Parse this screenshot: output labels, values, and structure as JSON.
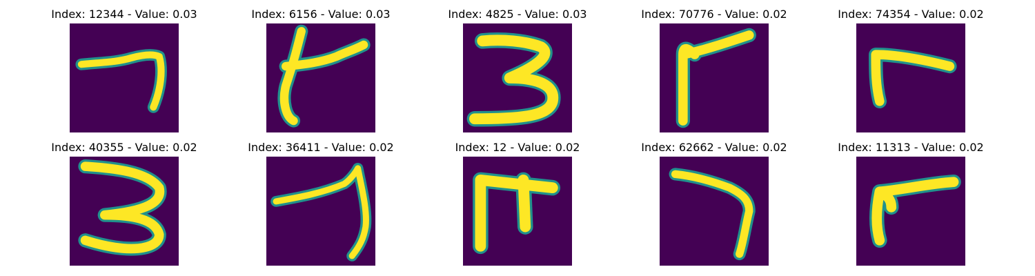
{
  "figure": {
    "background": "#ffffff",
    "image_background_color": "#440154",
    "stroke_color": "#fde725",
    "stroke_edge_color": "#21918c",
    "panels": [
      {
        "title": "Index: 12344 - Value: 0.03",
        "glyph": "seven-like"
      },
      {
        "title": "Index: 6156 - Value: 0.03",
        "glyph": "cross-like"
      },
      {
        "title": "Index: 4825 - Value: 0.03",
        "glyph": "three"
      },
      {
        "title": "Index: 70776 - Value: 0.02",
        "glyph": "angled-stroke"
      },
      {
        "title": "Index: 74354 - Value: 0.02",
        "glyph": "angled-stroke"
      },
      {
        "title": "Index: 40355 - Value: 0.02",
        "glyph": "three"
      },
      {
        "title": "Index: 36411 - Value: 0.02",
        "glyph": "seven-like"
      },
      {
        "title": "Index: 12 - Value: 0.02",
        "glyph": "frame-like"
      },
      {
        "title": "Index: 62662 - Value: 0.02",
        "glyph": "seven"
      },
      {
        "title": "Index: 11313 - Value: 0.02",
        "glyph": "angled-stroke"
      }
    ]
  }
}
